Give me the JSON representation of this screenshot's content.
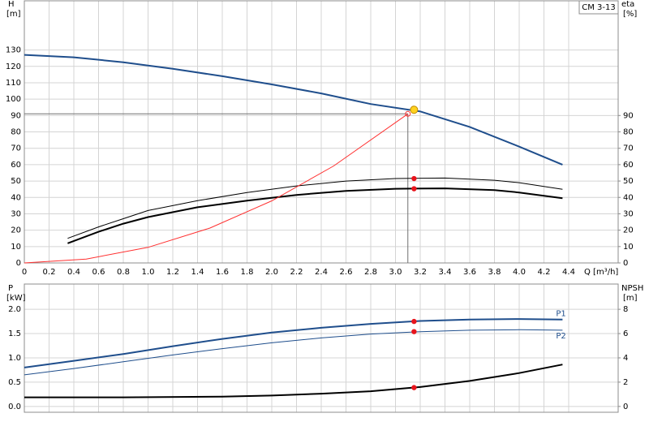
{
  "chart_data": [
    {
      "type": "line",
      "annotation": "CM 3-13",
      "y_label": "H",
      "y_unit": "[m]",
      "y2_label": "eta",
      "y2_unit": "[%]",
      "x_label": "Q [m³/h]",
      "xlim": [
        0,
        4.8
      ],
      "xticks": [
        0,
        0.2,
        0.4,
        0.6,
        0.8,
        {
          "value": 1,
          "label": "1.0"
        },
        1.2,
        1.4,
        1.6,
        1.8,
        {
          "value": 2,
          "label": "2.0"
        },
        2.2,
        2.4,
        2.6,
        2.8,
        {
          "value": 3,
          "label": "3.0"
        },
        3.2,
        3.4,
        3.6,
        3.8,
        {
          "value": 4,
          "label": "4.0"
        },
        4.2,
        4.4
      ],
      "show_x_tick_labels": true,
      "ylim": [
        0,
        160
      ],
      "yticks": [
        0,
        10,
        20,
        30,
        40,
        50,
        60,
        70,
        80,
        90,
        100,
        110,
        120,
        130
      ],
      "y2lim": [
        0,
        160
      ],
      "y2ticks": [
        0,
        10,
        20,
        30,
        40,
        50,
        60,
        70,
        80,
        90
      ],
      "grid": true,
      "series": [
        {
          "color": "#1f4e8c",
          "width": 2,
          "axis": "y",
          "x": [
            0,
            0.4,
            0.8,
            1.2,
            1.6,
            2.0,
            2.4,
            2.8,
            3.2,
            3.6,
            4.0,
            4.35
          ],
          "values": [
            127,
            125.5,
            122.5,
            118.5,
            114,
            109,
            103.5,
            97,
            92.5,
            83,
            71,
            60
          ]
        },
        {
          "color": "#000000",
          "width": 1,
          "axis": "y2",
          "x": [
            0.35,
            0.6,
            0.8,
            1.0,
            1.4,
            1.8,
            2.2,
            2.6,
            3.0,
            3.4,
            3.8,
            4.0,
            4.35
          ],
          "values": [
            15,
            22,
            27,
            32,
            38,
            43,
            47,
            50,
            51.5,
            51.8,
            50.5,
            49,
            45
          ]
        },
        {
          "color": "#000000",
          "width": 2,
          "axis": "y2",
          "x": [
            0.35,
            0.6,
            0.8,
            1.0,
            1.4,
            1.8,
            2.2,
            2.6,
            3.0,
            3.4,
            3.8,
            4.0,
            4.35
          ],
          "values": [
            12,
            19,
            24,
            28,
            34,
            38,
            41.5,
            44,
            45.3,
            45.5,
            44.5,
            43,
            39.5
          ]
        },
        {
          "color": "#ff3030",
          "width": 1,
          "axis": "y",
          "x": [
            0,
            0.5,
            1.0,
            1.5,
            2.0,
            2.5,
            3.1
          ],
          "values": [
            0,
            2.4,
            9.5,
            21.3,
            37.9,
            59.2,
            91
          ]
        }
      ],
      "guides": {
        "x": 3.1,
        "y": 91,
        "color": "#ff3030"
      },
      "points": [
        {
          "x": 3.15,
          "y": 93.5,
          "axis": "y",
          "color": "#ffd21f"
        },
        {
          "x": 3.15,
          "y": 51.5,
          "axis": "y2",
          "color": "#e8141c"
        },
        {
          "x": 3.15,
          "y": 45.3,
          "axis": "y2",
          "color": "#e8141c"
        }
      ]
    },
    {
      "type": "line",
      "y_label": "P",
      "y_unit": "[kW]",
      "y2_label": "NPSH",
      "y2_unit": "[m]",
      "xlim": [
        0,
        4.8
      ],
      "xticks": [
        0,
        0.2,
        0.4,
        0.6,
        0.8,
        1,
        1.2,
        1.4,
        1.6,
        1.8,
        2,
        2.2,
        2.4,
        2.6,
        2.8,
        3,
        3.2,
        3.4,
        3.6,
        3.8,
        4,
        4.2,
        4.4
      ],
      "show_x_tick_labels": false,
      "ylim": [
        -0.12,
        2.52
      ],
      "yticks": [
        {
          "value": 0,
          "label": "0.0"
        },
        0.5,
        {
          "value": 1,
          "label": "1.0"
        },
        1.5,
        {
          "value": 2,
          "label": "2.0"
        }
      ],
      "y2lim": [
        -0.48,
        10.08
      ],
      "y2ticks": [
        0,
        2,
        4,
        6,
        8
      ],
      "grid": true,
      "series": [
        {
          "name": "P1",
          "color": "#1f4e8c",
          "width": 2,
          "axis": "y",
          "x": [
            0,
            0.4,
            0.8,
            1.2,
            1.6,
            2.0,
            2.4,
            2.8,
            3.2,
            3.6,
            4.0,
            4.35
          ],
          "values": [
            0.8,
            0.94,
            1.08,
            1.24,
            1.39,
            1.52,
            1.62,
            1.7,
            1.76,
            1.79,
            1.8,
            1.79
          ]
        },
        {
          "name": "P2",
          "color": "#1f4e8c",
          "width": 1,
          "axis": "y",
          "x": [
            0,
            0.4,
            0.8,
            1.2,
            1.6,
            2.0,
            2.4,
            2.8,
            3.2,
            3.6,
            4.0,
            4.35
          ],
          "values": [
            0.65,
            0.78,
            0.92,
            1.06,
            1.19,
            1.31,
            1.41,
            1.49,
            1.54,
            1.57,
            1.58,
            1.57
          ]
        },
        {
          "color": "#000000",
          "width": 2,
          "axis": "y2",
          "x": [
            0,
            0.8,
            1.6,
            2.0,
            2.4,
            2.8,
            3.2,
            3.6,
            4.0,
            4.35
          ],
          "values": [
            0.75,
            0.75,
            0.8,
            0.9,
            1.05,
            1.25,
            1.6,
            2.1,
            2.75,
            3.45
          ]
        }
      ],
      "points": [
        {
          "x": 3.15,
          "y": 1.75,
          "axis": "y",
          "color": "#e8141c"
        },
        {
          "x": 3.15,
          "y": 1.54,
          "axis": "y",
          "color": "#e8141c"
        },
        {
          "x": 3.15,
          "y": 1.55,
          "axis": "y2",
          "color": "#e8141c"
        }
      ]
    }
  ]
}
